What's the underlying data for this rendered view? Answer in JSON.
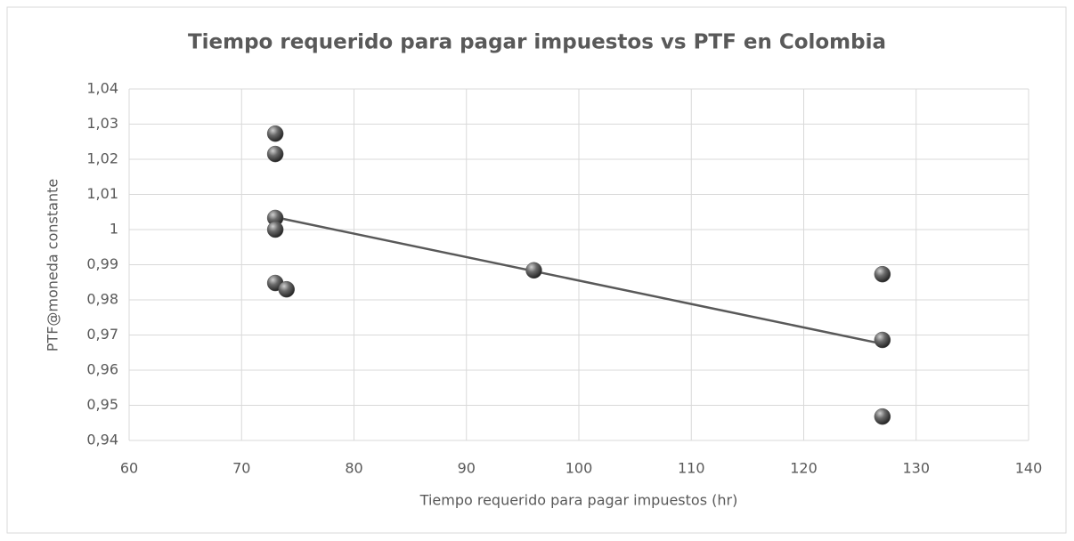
{
  "chart_data": {
    "type": "scatter",
    "title": "Tiempo requerido para pagar impuestos vs PTF en Colombia",
    "x_label": "Tiempo requerido para pagar impuestos (hr)",
    "y_label": "PTF@moneda constante",
    "x": [
      73,
      73,
      73,
      73,
      73,
      74,
      96,
      127,
      127,
      127
    ],
    "values": [
      1.0273,
      1.0215,
      1.0033,
      1.0,
      0.9848,
      0.983,
      0.9884,
      0.9873,
      0.9686,
      0.9468
    ],
    "color": "#595959",
    "trendline": "linear",
    "trendline_color": "#595959",
    "grid": true,
    "xlim": [
      60,
      140
    ],
    "xticks": [
      60,
      70,
      80,
      90,
      100,
      110,
      120,
      130,
      140
    ],
    "ylim": [
      0.94,
      1.04
    ],
    "yticks": [
      {
        "value": 0.94,
        "label": "0,94"
      },
      {
        "value": 0.95,
        "label": "0,95"
      },
      {
        "value": 0.96,
        "label": "0,96"
      },
      {
        "value": 0.97,
        "label": "0,97"
      },
      {
        "value": 0.98,
        "label": "0,98"
      },
      {
        "value": 0.99,
        "label": "0,99"
      },
      1,
      {
        "value": 1.01,
        "label": "1,01"
      },
      {
        "value": 1.02,
        "label": "1,02"
      },
      {
        "value": 1.03,
        "label": "1,03"
      },
      {
        "value": 1.04,
        "label": "1,04"
      }
    ]
  }
}
